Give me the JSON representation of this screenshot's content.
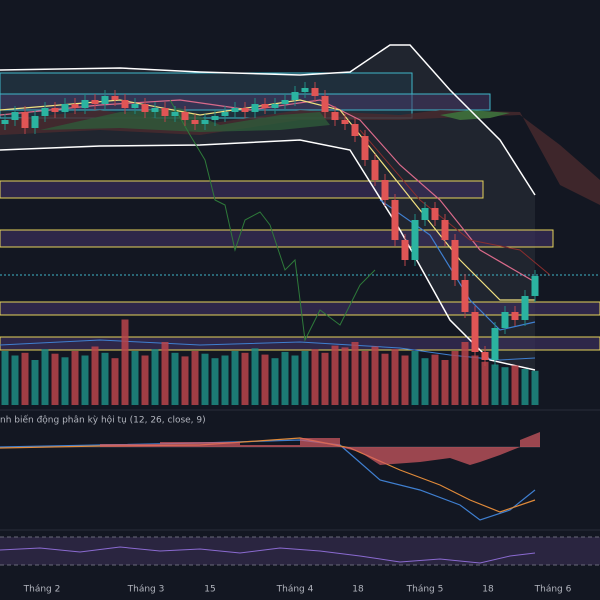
{
  "chart_data": {
    "type": "candlestick",
    "open": [
      69,
      70,
      72,
      68,
      71,
      73,
      72,
      74,
      73,
      75,
      74,
      76,
      75,
      73,
      74,
      72,
      73,
      71,
      72,
      70,
      69,
      70,
      71,
      72,
      73,
      72,
      74,
      73,
      74,
      75,
      77,
      78,
      76,
      72,
      70,
      69,
      66,
      60,
      55,
      50,
      40,
      35,
      45,
      48,
      45,
      40,
      30,
      22,
      12,
      10,
      18,
      22,
      20,
      26
    ],
    "high": [
      71.5,
      73.5,
      73.5,
      72.5,
      74.5,
      74.5,
      75.5,
      75.5,
      76.5,
      76.5,
      77.5,
      77.5,
      76.5,
      75.5,
      75.5,
      74.5,
      74.5,
      73.5,
      73.5,
      71.5,
      71.5,
      72.5,
      73.5,
      74.5,
      74.5,
      75.5,
      75.5,
      75.5,
      76.5,
      78.5,
      79.5,
      79.5,
      77.5,
      73.5,
      71.5,
      70.5,
      67.5,
      61.5,
      56.5,
      51.5,
      41.5,
      46.5,
      49.5,
      49.5,
      46.5,
      41.5,
      31.5,
      23.5,
      13.5,
      19.5,
      23.5,
      23.5,
      27.5,
      32.5
    ],
    "low": [
      67.5,
      68.5,
      66.5,
      66.5,
      69.5,
      70.5,
      70.5,
      71.5,
      71.5,
      72.5,
      72.5,
      73.5,
      71.5,
      71.5,
      70.5,
      70.5,
      69.5,
      69.5,
      68.5,
      67.5,
      67.5,
      68.5,
      69.5,
      70.5,
      70.5,
      70.5,
      71.5,
      71.5,
      72.5,
      73.5,
      75.5,
      74.5,
      70.5,
      68.5,
      67.5,
      64.5,
      58.5,
      53.5,
      48.5,
      38.5,
      33.5,
      33.5,
      43.5,
      43.5,
      38.5,
      28.5,
      20.5,
      10.5,
      8.5,
      8.5,
      16.5,
      18.5,
      18.5,
      24.5
    ],
    "close": [
      70,
      72,
      68,
      71,
      73,
      72,
      74,
      73,
      75,
      74,
      76,
      75,
      73,
      74,
      72,
      73,
      71,
      72,
      70,
      69,
      70,
      71,
      72,
      73,
      72,
      74,
      73,
      74,
      75,
      77,
      78,
      76,
      72,
      70,
      69,
      66,
      60,
      55,
      50,
      40,
      35,
      45,
      48,
      45,
      40,
      30,
      22,
      12,
      10,
      18,
      22,
      20,
      26,
      31
    ],
    "volume": [
      60,
      55,
      58,
      50,
      62,
      57,
      53,
      60,
      55,
      65,
      58,
      52,
      95,
      60,
      55,
      62,
      70,
      58,
      54,
      60,
      57,
      52,
      55,
      60,
      58,
      63,
      56,
      52,
      59,
      55,
      60,
      62,
      58,
      66,
      64,
      70,
      60,
      65,
      57,
      62,
      55,
      60,
      52,
      56,
      50,
      60,
      70,
      55,
      48,
      45,
      42,
      44,
      40,
      38
    ],
    "up_color": "#1f8c83",
    "down_color": "#b8444a",
    "ylim": [
      0,
      100
    ],
    "volume_lim": [
      0,
      100
    ],
    "xlim": [
      -0.5,
      59.5
    ],
    "xticks": [
      {
        "value": 3.7,
        "label": "Tháng 2"
      },
      {
        "value": 14.1,
        "label": "Tháng 3"
      },
      {
        "value": 20.5,
        "label": "15"
      },
      {
        "value": 29,
        "label": "Tháng 4"
      },
      {
        "value": 35.3,
        "label": "18"
      },
      {
        "value": 42,
        "label": "Tháng 5"
      },
      {
        "value": 48.3,
        "label": "18"
      },
      {
        "value": 54.8,
        "label": "Tháng 6"
      }
    ],
    "macd_label": "nh biến động phân kỳ hội tụ (12, 26, close, 9)"
  }
}
